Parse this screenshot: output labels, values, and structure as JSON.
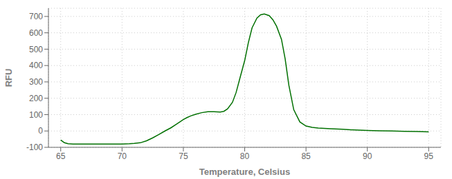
{
  "chart_data": {
    "type": "line",
    "xlabel": "Temperature, Celsius",
    "ylabel": "RFU",
    "color": "#007000",
    "grid": true,
    "xlim": [
      64.0,
      96.0
    ],
    "ylim": [
      -100,
      750
    ],
    "xticks": [
      65,
      70,
      75,
      80,
      85,
      90,
      95
    ],
    "yticks": [
      -100,
      0,
      100,
      200,
      300,
      400,
      500,
      600,
      700
    ],
    "x": [
      65.0,
      65.3,
      65.6,
      66.0,
      66.5,
      67.0,
      67.5,
      68.0,
      68.5,
      69.0,
      69.3,
      69.6,
      70.0,
      70.3,
      70.6,
      71.0,
      71.5,
      72.0,
      72.5,
      73.0,
      73.5,
      74.0,
      74.5,
      75.0,
      75.3,
      75.6,
      76.0,
      76.5,
      77.0,
      77.5,
      78.0,
      78.3,
      78.6,
      79.0,
      79.3,
      79.6,
      80.0,
      80.3,
      80.6,
      81.0,
      81.3,
      81.6,
      82.0,
      82.3,
      82.6,
      83.0,
      83.3,
      83.6,
      84.0,
      84.5,
      85.0,
      85.5,
      86.0,
      87.0,
      88.0,
      89.0,
      90.0,
      91.0,
      92.0,
      93.0,
      94.0,
      95.0
    ],
    "values": [
      -55,
      -72,
      -78,
      -80,
      -80,
      -80,
      -80,
      -80,
      -80,
      -80,
      -80,
      -80,
      -80,
      -79,
      -78,
      -76,
      -72,
      -60,
      -42,
      -22,
      0,
      20,
      45,
      70,
      82,
      92,
      102,
      112,
      118,
      118,
      116,
      120,
      135,
      175,
      235,
      320,
      430,
      540,
      630,
      690,
      710,
      715,
      705,
      680,
      640,
      560,
      440,
      280,
      130,
      55,
      30,
      22,
      18,
      14,
      10,
      6,
      3,
      1,
      0,
      -2,
      -3,
      -5
    ]
  }
}
